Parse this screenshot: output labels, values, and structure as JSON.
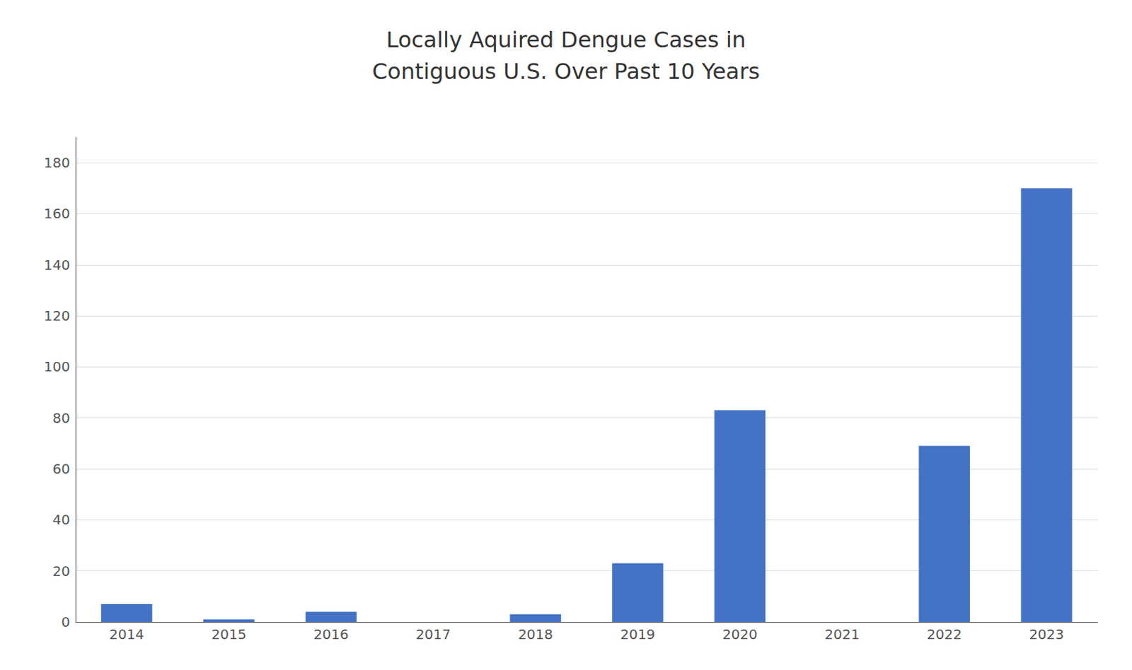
{
  "chart_data": {
    "type": "bar",
    "title": "Locally Aquired Dengue Cases in\nContiguous U.S. Over Past 10 Years",
    "categories": [
      "2014",
      "2015",
      "2016",
      "2017",
      "2018",
      "2019",
      "2020",
      "2021",
      "2022",
      "2023"
    ],
    "values": [
      7,
      1,
      4,
      0,
      3,
      23,
      83,
      0,
      69,
      170
    ],
    "color": "#4472C4",
    "ylim": [
      0,
      190
    ],
    "yticks": [
      0,
      20,
      40,
      60,
      80,
      100,
      120,
      140,
      160,
      180
    ],
    "grid": true
  }
}
